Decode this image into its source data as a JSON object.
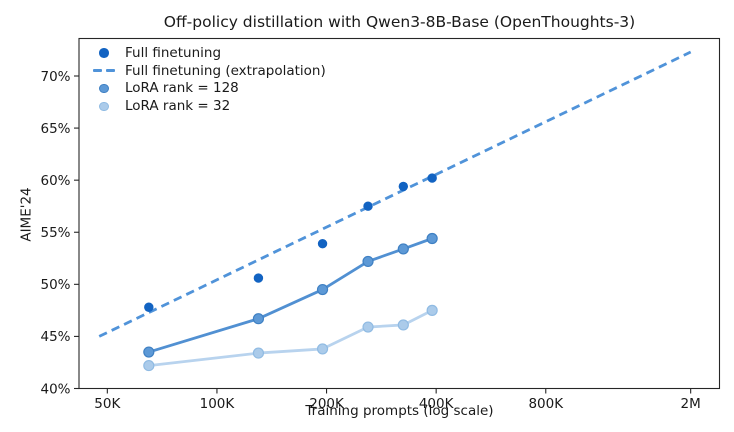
{
  "chart_data": {
    "type": "scatter",
    "title": "Off-policy distillation with Qwen3-8B-Base (OpenThoughts-3)",
    "xlabel": "Training prompts (log scale)",
    "ylabel": "AIME'24",
    "x_scale": "log",
    "xlim": [
      41800,
      2400000
    ],
    "ylim": [
      40,
      73.6
    ],
    "grid": false,
    "legend_position": "upper left",
    "legend_frame": false,
    "x_ticks": [
      {
        "v": 50000,
        "label": "50K"
      },
      {
        "v": 100000,
        "label": "100K"
      },
      {
        "v": 200000,
        "label": "200K"
      },
      {
        "v": 400000,
        "label": "400K"
      },
      {
        "v": 800000,
        "label": "800K"
      },
      {
        "v": 2000000,
        "label": "2M"
      }
    ],
    "y_ticks": [
      {
        "v": 40,
        "label": "40%"
      },
      {
        "v": 45,
        "label": "45%"
      },
      {
        "v": 50,
        "label": "50%"
      },
      {
        "v": 55,
        "label": "55%"
      },
      {
        "v": 60,
        "label": "60%"
      },
      {
        "v": 65,
        "label": "65%"
      },
      {
        "v": 70,
        "label": "70%"
      }
    ],
    "series": [
      {
        "name": "Full finetuning",
        "kind": "scatter",
        "color": "#1263c2",
        "x": [
          65000,
          130000,
          195000,
          260000,
          325000,
          390000
        ],
        "y": [
          47.8,
          50.6,
          53.9,
          57.5,
          59.4,
          60.2
        ]
      },
      {
        "name": "Full finetuning (extrapolation)",
        "kind": "dashed_line",
        "color": "#5093d9",
        "x": [
          47500,
          2000000
        ],
        "y": [
          45.0,
          72.3
        ]
      },
      {
        "name": "LoRA rank = 128",
        "kind": "line_markers",
        "color": "#5190d2",
        "marker_fill": "#5d99d6",
        "marker_edge": "#3f80c3",
        "x": [
          65000,
          130000,
          195000,
          260000,
          325000,
          390000
        ],
        "y": [
          43.5,
          46.7,
          49.5,
          52.2,
          53.4,
          54.4
        ]
      },
      {
        "name": "LoRA rank = 32",
        "kind": "line_markers",
        "color": "#b8d3ee",
        "marker_fill": "#abcbea",
        "marker_edge": "#90bbe3",
        "x": [
          65000,
          130000,
          195000,
          260000,
          325000,
          390000
        ],
        "y": [
          42.2,
          43.4,
          43.8,
          45.9,
          46.1,
          47.5
        ]
      }
    ]
  }
}
